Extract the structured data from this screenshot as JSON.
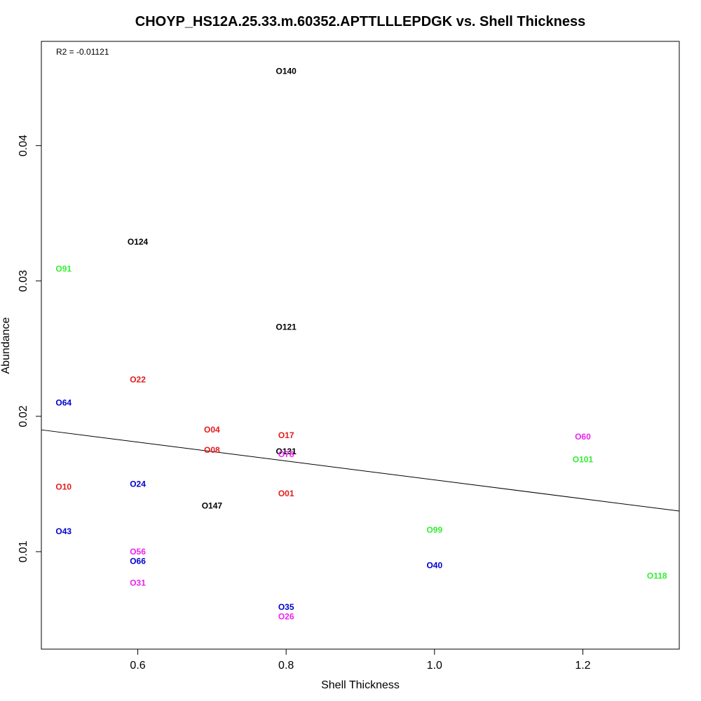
{
  "colors": {
    "red": "#e41a1c",
    "blue": "#0000cd",
    "green": "#33ee33",
    "magenta": "#ee22ee",
    "black": "#000000"
  },
  "chart_data": {
    "type": "scatter",
    "title": "CHOYP_HS12A.25.33.m.60352.APTTLLLEPDGK vs. Shell Thickness",
    "xlabel": "Shell Thickness",
    "ylabel": "Abundance",
    "annotation": "R2 = -0.01121",
    "xlim": [
      0.47,
      1.33
    ],
    "ylim": [
      0.0028,
      0.0477
    ],
    "xticks": [
      0.6,
      0.8,
      1.0,
      1.2
    ],
    "xtick_labels": [
      "0.6",
      "0.8",
      "1.0",
      "1.2"
    ],
    "yticks": [
      0.01,
      0.02,
      0.03,
      0.04
    ],
    "ytick_labels": [
      "0.01",
      "0.02",
      "0.03",
      "0.04"
    ],
    "grid": false,
    "points": [
      {
        "label": "O140",
        "x": 0.8,
        "y": 0.0455,
        "color": "black"
      },
      {
        "label": "O124",
        "x": 0.6,
        "y": 0.0329,
        "color": "black"
      },
      {
        "label": "O91",
        "x": 0.5,
        "y": 0.0309,
        "color": "green"
      },
      {
        "label": "O121",
        "x": 0.8,
        "y": 0.0266,
        "color": "black"
      },
      {
        "label": "O22",
        "x": 0.6,
        "y": 0.0227,
        "color": "red"
      },
      {
        "label": "O64",
        "x": 0.5,
        "y": 0.021,
        "color": "blue"
      },
      {
        "label": "O04",
        "x": 0.7,
        "y": 0.019,
        "color": "red"
      },
      {
        "label": "O17",
        "x": 0.8,
        "y": 0.0186,
        "color": "red"
      },
      {
        "label": "O60",
        "x": 1.2,
        "y": 0.0185,
        "color": "magenta"
      },
      {
        "label": "O08",
        "x": 0.7,
        "y": 0.0175,
        "color": "red"
      },
      {
        "label": "O131",
        "x": 0.8,
        "y": 0.0174,
        "color": "black"
      },
      {
        "label": "O78",
        "x": 0.8,
        "y": 0.0172,
        "color": "magenta"
      },
      {
        "label": "O101",
        "x": 1.2,
        "y": 0.0168,
        "color": "green"
      },
      {
        "label": "O24",
        "x": 0.6,
        "y": 0.015,
        "color": "blue"
      },
      {
        "label": "O10",
        "x": 0.5,
        "y": 0.0148,
        "color": "red"
      },
      {
        "label": "O01",
        "x": 0.8,
        "y": 0.0143,
        "color": "red"
      },
      {
        "label": "O147",
        "x": 0.7,
        "y": 0.0134,
        "color": "black"
      },
      {
        "label": "O99",
        "x": 1.0,
        "y": 0.0116,
        "color": "green"
      },
      {
        "label": "O43",
        "x": 0.5,
        "y": 0.0115,
        "color": "blue"
      },
      {
        "label": "O56",
        "x": 0.6,
        "y": 0.01,
        "color": "magenta"
      },
      {
        "label": "O66",
        "x": 0.6,
        "y": 0.0093,
        "color": "blue"
      },
      {
        "label": "O40",
        "x": 1.0,
        "y": 0.009,
        "color": "blue"
      },
      {
        "label": "O118",
        "x": 1.3,
        "y": 0.0082,
        "color": "green"
      },
      {
        "label": "O31",
        "x": 0.6,
        "y": 0.0077,
        "color": "magenta"
      },
      {
        "label": "O35",
        "x": 0.8,
        "y": 0.0059,
        "color": "blue"
      },
      {
        "label": "O26",
        "x": 0.8,
        "y": 0.0052,
        "color": "magenta"
      }
    ],
    "regression_line": {
      "x": [
        0.47,
        1.33
      ],
      "y": [
        0.019,
        0.013
      ]
    }
  }
}
